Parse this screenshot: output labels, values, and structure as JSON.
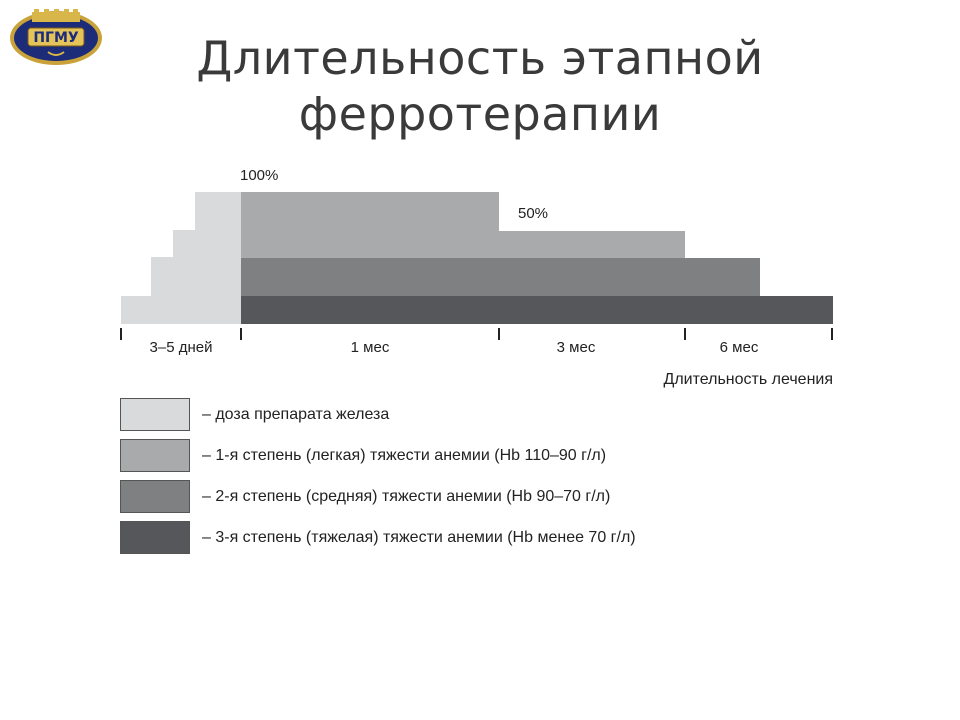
{
  "title": {
    "line1": "Длительность этапной",
    "line2": "ферротерапии"
  },
  "logo": {
    "icon": "university-crest-logo",
    "text": "ПГМУ"
  },
  "colors": {
    "iron_dose": "#d9dadb",
    "grade1": "#a9aaab",
    "grade2": "#7f8081",
    "grade3": "#55575a"
  },
  "diagram": {
    "dose_labels": {
      "full": "100%",
      "half": "50%"
    },
    "periods": [
      "3–5 дней",
      "1 мес",
      "3 мес",
      "6 мес"
    ],
    "axis_label": "Длительность лечения"
  },
  "legend": [
    {
      "label": "– доза препарата железа",
      "color_key": "iron_dose"
    },
    {
      "label": "– 1-я степень (легкая) тяжести анемии (Hb 110–90 г/л)",
      "color_key": "grade1"
    },
    {
      "label": "– 2-я степень (средняя) тяжести анемии (Hb 90–70 г/л)",
      "color_key": "grade2"
    },
    {
      "label": "– 3-я степень (тяжелая) тяжести анемии (Hb менее 70 г/л)",
      "color_key": "grade3"
    }
  ]
}
